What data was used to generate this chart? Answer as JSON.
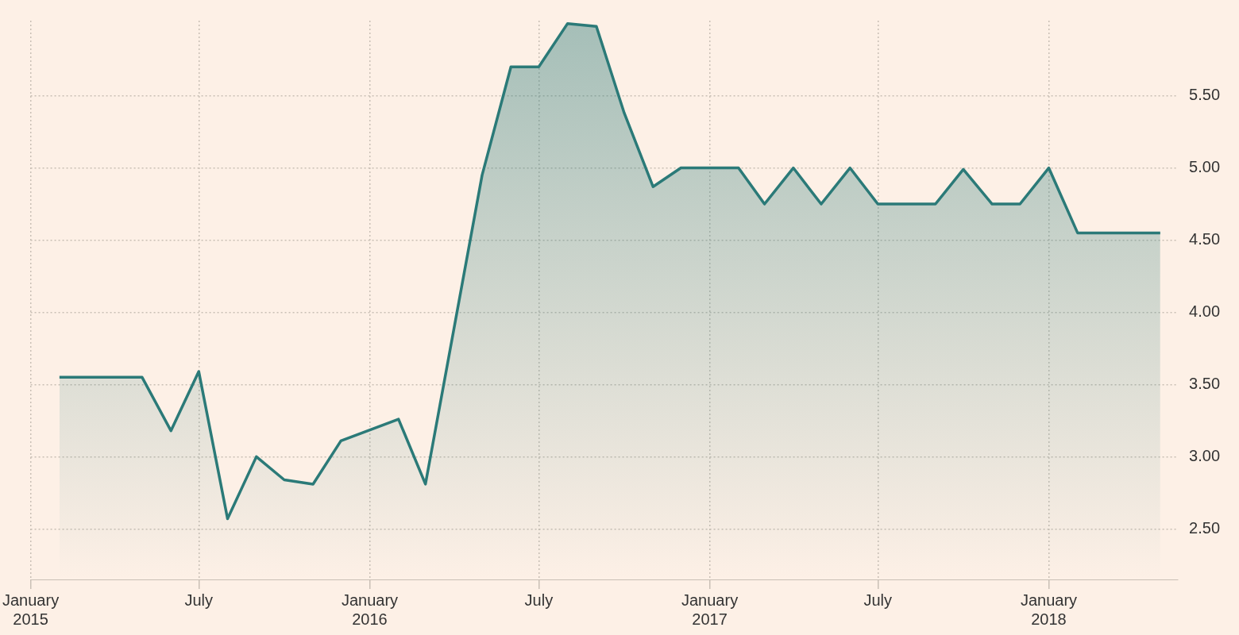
{
  "chart_data": {
    "type": "area",
    "x": [
      "2015-02",
      "2015-05",
      "2015-06",
      "2015-07",
      "2015-08",
      "2015-09",
      "2015-10",
      "2015-11",
      "2015-12",
      "2016-02",
      "2016-03",
      "2016-05",
      "2016-06",
      "2016-07",
      "2016-08",
      "2016-09",
      "2016-10",
      "2016-11",
      "2016-12",
      "2017-02",
      "2017-03",
      "2017-04",
      "2017-05",
      "2017-06",
      "2017-07",
      "2017-09",
      "2017-10",
      "2017-11",
      "2017-12",
      "2018-01",
      "2018-02",
      "2018-05"
    ],
    "series": [
      {
        "color": "#2b7a78",
        "values": [
          3.55,
          3.55,
          3.18,
          3.59,
          2.57,
          3.0,
          2.84,
          2.81,
          3.11,
          3.26,
          2.81,
          4.95,
          5.7,
          5.7,
          6.0,
          5.98,
          5.38,
          4.87,
          5.0,
          5.0,
          4.75,
          5.0,
          4.75,
          5.0,
          4.75,
          4.75,
          4.99,
          4.75,
          4.75,
          5.0,
          4.55,
          4.55
        ]
      }
    ],
    "xlim": [
      "2015-01",
      "2018-05-20"
    ],
    "xticks": [
      {
        "value": "2015-01",
        "label": "January\n2015"
      },
      {
        "value": "2015-07",
        "label": "July"
      },
      {
        "value": "2016-01",
        "label": "January\n2016"
      },
      {
        "value": "2016-07",
        "label": "July"
      },
      {
        "value": "2017-01",
        "label": "January\n2017"
      },
      {
        "value": "2017-07",
        "label": "July"
      },
      {
        "value": "2018-01",
        "label": "January\n2018"
      }
    ],
    "ylim": [
      2.15,
      6.02
    ],
    "yticks": [
      {
        "value": 2.5,
        "label": "2.50"
      },
      {
        "value": 3,
        "label": "3.00"
      },
      {
        "value": 3.5,
        "label": "3.50"
      },
      {
        "value": 4,
        "label": "4.00"
      },
      {
        "value": 4.5,
        "label": "4.50"
      },
      {
        "value": 5,
        "label": "5.00"
      },
      {
        "value": 5.5,
        "label": "5.50"
      }
    ],
    "grid": true,
    "legend": false,
    "marker": "none",
    "line_style": "solid"
  }
}
